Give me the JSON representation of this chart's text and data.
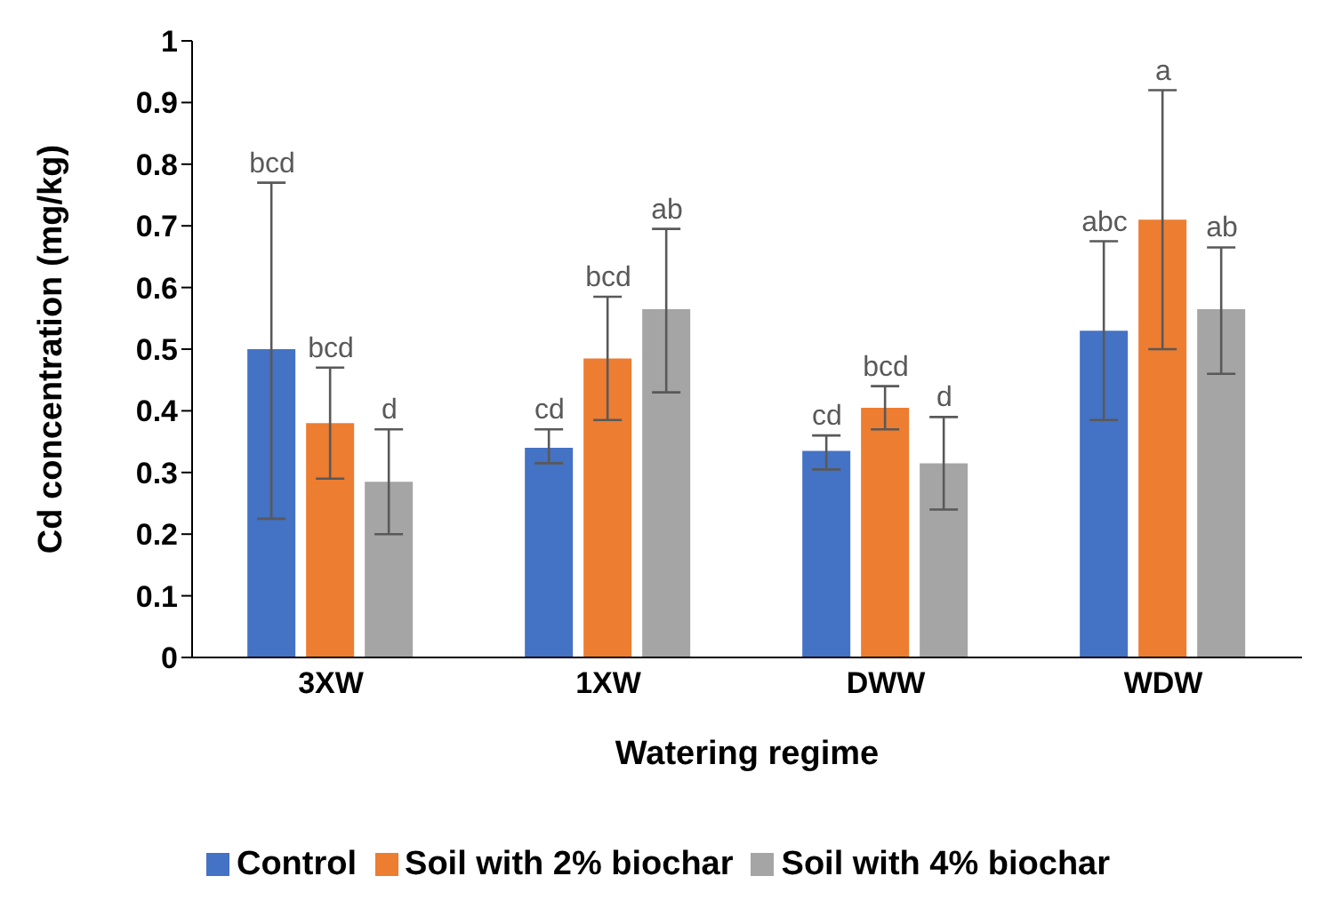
{
  "chart_data": {
    "type": "bar",
    "xlabel": "Watering regime",
    "ylabel": "Cd concentration (mg/kg)",
    "categories": [
      "3XW",
      "1XW",
      "DWW",
      "WDW"
    ],
    "series": [
      {
        "name": "Control",
        "color": "#4472c4",
        "values": [
          0.5,
          0.34,
          0.335,
          0.53
        ],
        "errors": [
          [
            0.225,
            0.77
          ],
          [
            0.315,
            0.37
          ],
          [
            0.305,
            0.36
          ],
          [
            0.385,
            0.675
          ]
        ]
      },
      {
        "name": "Soil with 2% biochar",
        "color": "#ed7d31",
        "values": [
          0.38,
          0.485,
          0.405,
          0.71
        ],
        "errors": [
          [
            0.29,
            0.47
          ],
          [
            0.385,
            0.585
          ],
          [
            0.37,
            0.44
          ],
          [
            0.5,
            0.92
          ]
        ]
      },
      {
        "name": "Soil with 4% biochar",
        "color": "#a5a5a5",
        "values": [
          0.285,
          0.565,
          0.315,
          0.565
        ],
        "errors": [
          [
            0.2,
            0.37
          ],
          [
            0.43,
            0.695
          ],
          [
            0.24,
            0.39
          ],
          [
            0.46,
            0.665
          ]
        ]
      }
    ],
    "annotations": [
      "bcd",
      "bcd",
      "d",
      "cd",
      "bcd",
      "ab",
      "cd",
      "bcd",
      "d",
      "abc",
      "a",
      "ab"
    ],
    "ylim": [
      0,
      1
    ],
    "yticks": [
      0,
      0.1,
      0.2,
      0.3,
      0.4,
      0.5,
      0.6,
      0.7,
      0.8,
      0.9,
      1
    ],
    "grid": false,
    "legend": "bottom"
  }
}
